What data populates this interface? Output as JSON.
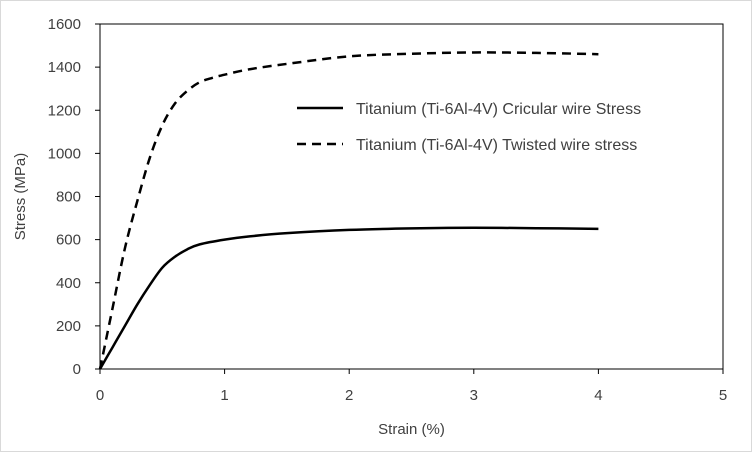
{
  "chart_data": {
    "type": "line",
    "title": "",
    "xlabel": "Strain (%)",
    "ylabel": "Stress (MPa)",
    "xlim": [
      0,
      5
    ],
    "ylim": [
      0,
      1600
    ],
    "x_ticks": [
      "0",
      "1",
      "2",
      "3",
      "4",
      "5"
    ],
    "y_ticks": [
      "0",
      "200",
      "400",
      "600",
      "800",
      "1000",
      "1200",
      "1400",
      "1600"
    ],
    "grid": false,
    "legend_position": "right-center",
    "series": [
      {
        "name": "Titanium (Ti-6Al-4V) Cricular wire Stress",
        "style": "solid",
        "color": "#000000",
        "x": [
          0,
          0.1,
          0.2,
          0.3,
          0.4,
          0.5,
          0.6,
          0.7,
          0.8,
          1.0,
          1.2,
          1.5,
          2.0,
          2.5,
          3.0,
          3.5,
          4.0
        ],
        "y": [
          0,
          100,
          200,
          300,
          390,
          470,
          520,
          555,
          578,
          600,
          615,
          630,
          645,
          652,
          655,
          653,
          650
        ]
      },
      {
        "name": "Titanium (Ti-6Al-4V) Twisted wire stress",
        "style": "dashed",
        "color": "#000000",
        "x": [
          0,
          0.1,
          0.2,
          0.3,
          0.4,
          0.5,
          0.6,
          0.7,
          0.8,
          0.9,
          1.0,
          1.2,
          1.5,
          2.0,
          2.5,
          3.0,
          3.5,
          4.0
        ],
        "y": [
          0,
          280,
          560,
          780,
          980,
          1130,
          1230,
          1290,
          1330,
          1350,
          1365,
          1390,
          1415,
          1450,
          1462,
          1468,
          1466,
          1460
        ]
      }
    ]
  }
}
